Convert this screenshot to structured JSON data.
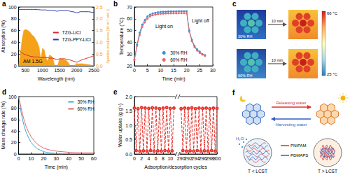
{
  "chart_data": [
    {
      "title": "a",
      "type": "line",
      "xlabel": "Wavelength (nm)",
      "ylabel": "Absorption (%)",
      "y2label": "Spectral irradiance (W m⁻² nm⁻¹)",
      "x": [
        300,
        350,
        400,
        450,
        500,
        550,
        600,
        650,
        700,
        750,
        800,
        850,
        900,
        950,
        1000,
        1050,
        1100,
        1150,
        1200,
        1250,
        1300,
        1350,
        1400,
        1450,
        1500,
        1550,
        1600,
        1650,
        1700,
        1750,
        1800,
        1850,
        1900,
        1950,
        2000,
        2050,
        2100,
        2150,
        2200,
        2250,
        2300,
        2350,
        2400,
        2450,
        2500
      ],
      "xlim": [
        300,
        2500
      ],
      "xticks": [
        500,
        1000,
        1500,
        2000,
        2500
      ],
      "ylim": [
        0,
        100
      ],
      "yticks": [
        0,
        20,
        40,
        60,
        80,
        100
      ],
      "y2lim": [
        0,
        2.5
      ],
      "y2ticks": [
        {
          "value": 0,
          "label": "0.0"
        },
        {
          "value": 0.5,
          "label": "0.5"
        },
        {
          "value": 1,
          "label": "1.0"
        },
        {
          "value": 1.5,
          "label": "1.5"
        },
        {
          "value": 2,
          "label": "2.0"
        },
        {
          "value": 2.5,
          "label": "2.5"
        }
      ],
      "series": [
        {
          "name": "AM 1.5G",
          "type": "area",
          "axis": "y2",
          "color": "#f5a21b",
          "values": [
            0,
            0.5,
            1.1,
            1.5,
            1.55,
            1.52,
            1.48,
            1.4,
            1.3,
            1.25,
            1.12,
            1.0,
            0.8,
            0.25,
            0.75,
            0.68,
            0.35,
            0.2,
            0.45,
            0.43,
            0.35,
            0.03,
            0,
            0.05,
            0.3,
            0.3,
            0.28,
            0.26,
            0.22,
            0.15,
            0.02,
            0,
            0,
            0.04,
            0.1,
            0.08,
            0.09,
            0.09,
            0.08,
            0.07,
            0.06,
            0.05,
            0.04,
            0.02,
            0.01
          ]
        },
        {
          "name": "TZG-LiCl",
          "color": "#d7282f",
          "values": [
            28,
            24,
            22,
            20,
            19,
            18,
            17,
            16,
            16,
            15,
            15,
            15,
            15,
            14,
            14,
            14,
            14,
            14,
            13,
            13,
            13,
            12,
            11,
            11,
            12,
            12,
            12,
            12,
            11,
            11,
            10,
            9,
            8,
            7,
            6,
            7,
            9,
            10,
            11,
            12,
            13,
            14,
            15,
            16,
            17
          ]
        },
        {
          "name": "TZG-PPY-LiCl",
          "color": "#2a3ba8",
          "values": [
            96,
            96,
            96,
            96,
            96,
            96,
            96,
            96,
            96,
            96,
            96,
            95.5,
            95.5,
            95,
            95,
            95,
            95,
            94.5,
            94.5,
            94.5,
            94,
            94,
            93,
            93,
            94,
            94,
            94,
            94,
            94,
            93.5,
            93,
            92,
            92,
            91,
            90,
            91,
            92,
            92,
            92,
            92,
            92,
            92,
            91.5,
            91,
            91
          ]
        }
      ],
      "legend": "center right",
      "grid": false
    },
    {
      "title": "b",
      "type": "line",
      "xlabel": "Time (min)",
      "ylabel": "Temperature (°C)",
      "x": [
        0,
        1,
        2,
        3,
        4,
        5,
        6,
        7,
        8,
        9,
        10,
        11,
        12,
        13,
        14,
        15,
        16,
        17,
        18,
        19,
        20,
        21,
        22,
        23,
        24,
        25,
        26,
        27
      ],
      "xlim": [
        0,
        30
      ],
      "xticks": [
        0,
        5,
        10,
        15,
        20,
        25,
        30
      ],
      "ylim": [
        20,
        70
      ],
      "yticks": [
        20,
        30,
        40,
        50,
        60,
        70
      ],
      "series": [
        {
          "name": "30% RH",
          "color": "#3d8fd1",
          "marker": "circle",
          "values": [
            25,
            38,
            48,
            55,
            59,
            62,
            63.5,
            64.5,
            65,
            65.5,
            65.8,
            66,
            66,
            66.2,
            66.2,
            66.3,
            66.3,
            66.4,
            66.4,
            66.4,
            66.4,
            50,
            42,
            37,
            34,
            32,
            30,
            29
          ]
        },
        {
          "name": "60% RH",
          "color": "#e8686a",
          "marker": "circle",
          "values": [
            25,
            37,
            46,
            53,
            57,
            60,
            62,
            63,
            63.5,
            64,
            64.2,
            64.4,
            64.5,
            64.6,
            64.6,
            64.7,
            64.7,
            64.8,
            64.8,
            64.8,
            64.8,
            49,
            41,
            36,
            33,
            31,
            29.5,
            28.5
          ]
        }
      ],
      "annotations": [
        "Light on",
        "Light off"
      ],
      "legend": "lower center",
      "grid": false
    },
    {
      "title": "d",
      "type": "line",
      "xlabel": "Time (min)",
      "ylabel": "Mass change rate (%)",
      "x": [
        0,
        2,
        4,
        6,
        8,
        10,
        12,
        15,
        20,
        25,
        30,
        35,
        40,
        50,
        60
      ],
      "xlim": [
        0,
        60
      ],
      "xticks": [
        0,
        10,
        20,
        30,
        40,
        50,
        60
      ],
      "ylim": [
        0,
        100
      ],
      "yticks": [
        0,
        20,
        40,
        60,
        80,
        100
      ],
      "series": [
        {
          "name": "30% RH",
          "color": "#3fa6d8",
          "values": [
            100,
            72,
            52,
            38,
            28,
            20,
            15,
            9,
            4,
            2,
            1,
            0,
            null,
            null,
            null
          ]
        },
        {
          "name": "60% RH",
          "color": "#e26a6a",
          "values": [
            100,
            80,
            62,
            48,
            38,
            30,
            24,
            17,
            10,
            7,
            5,
            4,
            3,
            2,
            2
          ]
        }
      ],
      "legend": "upper right",
      "grid": false
    },
    {
      "title": "e",
      "type": "line",
      "xlabel": "Adsorption/desorption cycles",
      "ylabel": "Water uptake (g g⁻¹)",
      "categories": [
        "0",
        null,
        null,
        null,
        "2",
        null,
        null,
        null,
        "4",
        null,
        null,
        null,
        "6",
        null,
        null,
        null,
        "8",
        null,
        null,
        null,
        "10",
        null,
        null,
        null,
        null,
        null,
        "290",
        null,
        null,
        null,
        "292",
        null,
        null,
        null,
        "294",
        null,
        null,
        null,
        "296",
        null,
        null,
        null,
        "298",
        null,
        null,
        null,
        "300"
      ],
      "ylim": [
        0,
        2
      ],
      "yticks": [
        {
          "value": 0,
          "label": "0.0"
        },
        {
          "value": 0.5,
          "label": "0.5"
        },
        {
          "value": 1,
          "label": "1.0"
        },
        {
          "value": 1.5,
          "label": "1.5"
        },
        {
          "value": 2,
          "label": "2.0"
        }
      ],
      "series": [
        {
          "color": "#e8302a",
          "marker": "open_circle",
          "line_style": "dashed",
          "values": [
            1.6,
            0.12,
            1.58,
            0.1,
            1.62,
            0.11,
            1.6,
            0.1,
            1.59,
            0.12,
            1.61,
            0.1,
            1.6,
            0.11,
            1.58,
            0.1,
            1.6,
            0.12,
            1.62,
            0.1,
            1.59,
            0.11,
            1.6,
            null,
            null,
            null,
            1.58,
            0.12,
            1.6,
            0.1,
            1.59,
            0.11,
            1.61,
            0.1,
            1.58,
            0.12,
            1.6,
            0.1,
            1.59,
            0.11,
            1.6,
            0.1,
            1.58,
            0.12,
            1.6,
            0.1,
            1.59
          ]
        }
      ],
      "grid": false
    }
  ],
  "panel_c": {
    "label": "c",
    "rows": [
      "30% RH",
      "60% RH"
    ],
    "arrow_label": "10 min",
    "colorbar": {
      "max_label": "66 °C",
      "min_label": "25 °C"
    }
  },
  "panel_f": {
    "label": "f",
    "arrows": {
      "forward": "Releasing water",
      "backward": "Harvesting water"
    },
    "molecule": "H₂O",
    "states": [
      "T < LCST",
      "T > LCST"
    ],
    "components": [
      {
        "name": "PNIPAM",
        "color": "#e0302a"
      },
      {
        "name": "PDMAPS",
        "color": "#2f5fc4"
      }
    ]
  }
}
